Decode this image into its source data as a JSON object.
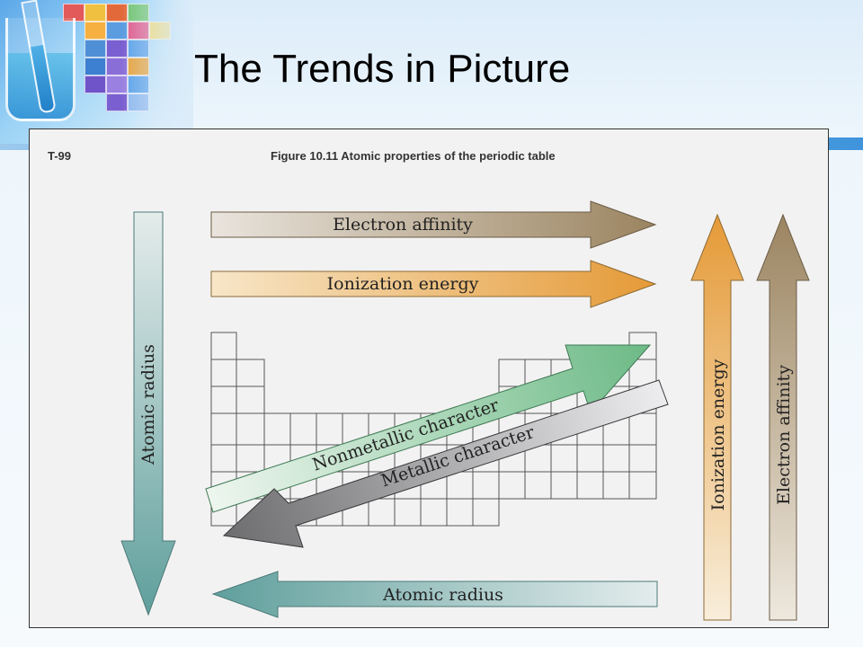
{
  "slide": {
    "title": "The Trends in Picture"
  },
  "figure": {
    "id": "T-99",
    "caption": "Figure 10.11    Atomic properties of the periodic table",
    "arrows": {
      "electron_affinity_horizontal": "Electron affinity",
      "ionization_energy_horizontal": "Ionization energy",
      "nonmetallic_character": "Nonmetallic character",
      "metallic_character": "Metallic character",
      "atomic_radius_horizontal": "Atomic radius",
      "atomic_radius_vertical": "Atomic radius",
      "ionization_energy_vertical": "Ionization energy",
      "electron_affinity_vertical": "Electron affinity"
    },
    "colors": {
      "brown_arrow": "#a08a67",
      "orange_arrow": "#e8a84e",
      "teal_arrow": "#6aa9a5",
      "green_arrow": "#7fc295",
      "gray_arrow": "#7b7b7d"
    }
  }
}
